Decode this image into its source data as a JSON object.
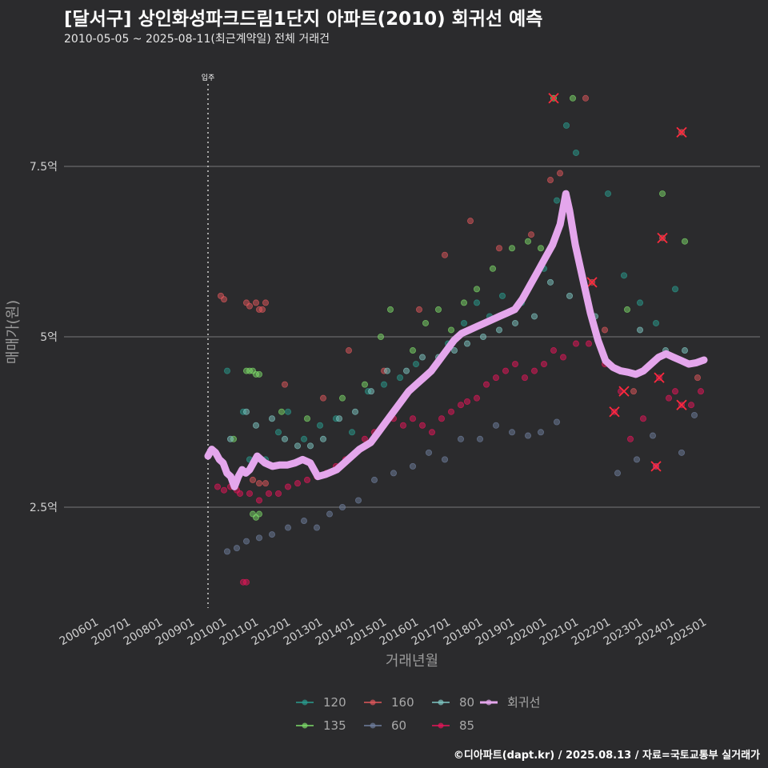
{
  "header": {
    "title": "[달서구] 상인화성파크드림1단지 아파트(2010) 회귀선 예측",
    "subtitle": "2010-05-05 ~ 2025-08-11(최근계약일) 전체 거래건"
  },
  "caption": "©디아파트(dapt.kr) / 2025.08.13 / 자료=국토교통부 실거래가",
  "colors": {
    "background": "#2b2b2d",
    "s120": "#2a9d8f",
    "s135": "#7ddc6a",
    "s160": "#e0575b",
    "s60": "#6f7f9e",
    "s80": "#7fc7c3",
    "s85": "#e8165a",
    "regression": "#e4a6ec"
  },
  "chart_data": {
    "type": "scatter",
    "title": "[달서구] 상인화성파크드림1단지 아파트(2010) 회귀선 예측",
    "subtitle": "2010-05-05 ~ 2025-08-11(최근계약일) 전체 거래건",
    "xlabel": "거래년월",
    "ylabel": "매매가(원)",
    "x_ticks": [
      "200601",
      "200701",
      "200801",
      "200901",
      "201001",
      "201101",
      "201201",
      "201301",
      "201401",
      "201501",
      "201601",
      "201701",
      "201801",
      "201901",
      "202001",
      "202101",
      "202201",
      "202301",
      "202401",
      "202501"
    ],
    "y_ticks": [
      2.5,
      5,
      7.5
    ],
    "y_tick_labels": [
      "2.5억",
      "5억",
      "7.5억"
    ],
    "ylim": [
      1.0,
      9.0
    ],
    "xlim": [
      2006.0,
      2025.75
    ],
    "grid": "horizontal major",
    "legend_position": "bottom",
    "vline": {
      "x": 2010.0,
      "label": "입주"
    },
    "legend": [
      "120",
      "135",
      "160",
      "60",
      "80",
      "85",
      "회귀선"
    ],
    "series": [
      {
        "name": "120",
        "color": "#2a9d8f",
        "points": [
          [
            2010.6,
            4.5
          ],
          [
            2011.1,
            3.9
          ],
          [
            2011.3,
            3.2
          ],
          [
            2011.8,
            3.2
          ],
          [
            2012.2,
            3.6
          ],
          [
            2012.5,
            3.9
          ],
          [
            2013.0,
            3.5
          ],
          [
            2013.5,
            3.7
          ],
          [
            2014.0,
            3.8
          ],
          [
            2014.5,
            3.6
          ],
          [
            2015.0,
            4.2
          ],
          [
            2015.5,
            4.3
          ],
          [
            2016.0,
            4.4
          ],
          [
            2016.5,
            4.6
          ],
          [
            2017.0,
            4.5
          ],
          [
            2017.5,
            4.9
          ],
          [
            2018.0,
            5.2
          ],
          [
            2018.4,
            5.5
          ],
          [
            2018.8,
            5.3
          ],
          [
            2019.2,
            5.6
          ],
          [
            2019.8,
            5.5
          ],
          [
            2020.5,
            6.0
          ],
          [
            2020.9,
            7.0
          ],
          [
            2021.2,
            8.1
          ],
          [
            2021.5,
            7.7
          ],
          [
            2022.5,
            7.1
          ],
          [
            2023.0,
            5.9
          ],
          [
            2023.5,
            5.5
          ],
          [
            2024.0,
            5.2
          ],
          [
            2024.6,
            5.7
          ]
        ]
      },
      {
        "name": "135",
        "color": "#7ddc6a",
        "points": [
          [
            2011.2,
            4.5
          ],
          [
            2011.3,
            4.5
          ],
          [
            2011.4,
            4.5
          ],
          [
            2011.5,
            4.45
          ],
          [
            2011.6,
            4.45
          ],
          [
            2011.4,
            2.4
          ],
          [
            2011.5,
            2.35
          ],
          [
            2011.6,
            2.4
          ],
          [
            2010.8,
            3.5
          ],
          [
            2012.3,
            3.9
          ],
          [
            2013.1,
            3.8
          ],
          [
            2014.2,
            4.1
          ],
          [
            2014.9,
            4.3
          ],
          [
            2015.4,
            5.0
          ],
          [
            2015.7,
            5.4
          ],
          [
            2016.4,
            4.8
          ],
          [
            2016.8,
            5.2
          ],
          [
            2017.2,
            5.4
          ],
          [
            2017.6,
            5.1
          ],
          [
            2018.0,
            5.5
          ],
          [
            2018.4,
            5.7
          ],
          [
            2018.9,
            6.0
          ],
          [
            2019.5,
            6.3
          ],
          [
            2020.0,
            6.4
          ],
          [
            2020.4,
            6.3
          ],
          [
            2020.8,
            8.5
          ],
          [
            2021.4,
            8.5
          ],
          [
            2023.1,
            5.4
          ],
          [
            2024.2,
            7.1
          ],
          [
            2024.9,
            6.4
          ]
        ]
      },
      {
        "name": "160",
        "color": "#e0575b",
        "points": [
          [
            2010.4,
            5.6
          ],
          [
            2010.5,
            5.55
          ],
          [
            2011.2,
            5.5
          ],
          [
            2011.3,
            5.45
          ],
          [
            2011.5,
            5.5
          ],
          [
            2011.6,
            5.4
          ],
          [
            2011.7,
            5.4
          ],
          [
            2011.8,
            5.5
          ],
          [
            2011.4,
            2.9
          ],
          [
            2011.6,
            2.85
          ],
          [
            2011.8,
            2.85
          ],
          [
            2012.4,
            4.3
          ],
          [
            2013.6,
            4.1
          ],
          [
            2014.4,
            4.8
          ],
          [
            2015.5,
            4.5
          ],
          [
            2016.6,
            5.4
          ],
          [
            2017.4,
            6.2
          ],
          [
            2018.2,
            6.7
          ],
          [
            2019.1,
            6.3
          ],
          [
            2020.1,
            6.5
          ],
          [
            2020.7,
            7.3
          ],
          [
            2021.0,
            7.4
          ],
          [
            2021.8,
            8.5
          ],
          [
            2022.0,
            5.8
          ],
          [
            2022.4,
            5.1
          ],
          [
            2023.3,
            4.2
          ],
          [
            2024.2,
            6.45
          ],
          [
            2024.8,
            8.0
          ],
          [
            2025.3,
            4.4
          ]
        ]
      },
      {
        "name": "60",
        "color": "#6f7f9e",
        "points": [
          [
            2010.6,
            1.85
          ],
          [
            2010.9,
            1.9
          ],
          [
            2011.2,
            2.0
          ],
          [
            2011.6,
            2.05
          ],
          [
            2012.0,
            2.1
          ],
          [
            2012.5,
            2.2
          ],
          [
            2013.0,
            2.3
          ],
          [
            2013.4,
            2.2
          ],
          [
            2013.8,
            2.4
          ],
          [
            2014.2,
            2.5
          ],
          [
            2014.7,
            2.6
          ],
          [
            2015.2,
            2.9
          ],
          [
            2015.8,
            3.0
          ],
          [
            2016.4,
            3.1
          ],
          [
            2016.9,
            3.3
          ],
          [
            2017.4,
            3.2
          ],
          [
            2017.9,
            3.5
          ],
          [
            2018.5,
            3.5
          ],
          [
            2019.0,
            3.7
          ],
          [
            2019.5,
            3.6
          ],
          [
            2020.0,
            3.55
          ],
          [
            2020.4,
            3.6
          ],
          [
            2020.9,
            3.75
          ],
          [
            2022.8,
            3.0
          ],
          [
            2023.4,
            3.2
          ],
          [
            2023.9,
            3.55
          ],
          [
            2024.0,
            3.1
          ],
          [
            2024.8,
            3.3
          ],
          [
            2025.2,
            3.85
          ]
        ]
      },
      {
        "name": "80",
        "color": "#7fc7c3",
        "points": [
          [
            2010.7,
            3.5
          ],
          [
            2011.2,
            3.9
          ],
          [
            2011.5,
            3.7
          ],
          [
            2012.0,
            3.8
          ],
          [
            2012.4,
            3.5
          ],
          [
            2012.8,
            3.4
          ],
          [
            2013.2,
            3.4
          ],
          [
            2013.6,
            3.5
          ],
          [
            2014.1,
            3.8
          ],
          [
            2014.6,
            3.9
          ],
          [
            2015.1,
            4.2
          ],
          [
            2015.6,
            4.5
          ],
          [
            2016.2,
            4.5
          ],
          [
            2016.7,
            4.7
          ],
          [
            2017.2,
            4.7
          ],
          [
            2017.7,
            4.8
          ],
          [
            2018.1,
            4.9
          ],
          [
            2018.6,
            5.0
          ],
          [
            2019.1,
            5.1
          ],
          [
            2019.6,
            5.2
          ],
          [
            2020.2,
            5.3
          ],
          [
            2020.7,
            5.8
          ],
          [
            2021.3,
            5.6
          ],
          [
            2022.1,
            5.3
          ],
          [
            2023.5,
            5.1
          ],
          [
            2024.3,
            4.8
          ],
          [
            2024.9,
            4.8
          ]
        ]
      },
      {
        "name": "85",
        "color": "#e8165a",
        "points": [
          [
            2010.3,
            2.8
          ],
          [
            2010.5,
            2.75
          ],
          [
            2010.7,
            2.8
          ],
          [
            2010.9,
            2.75
          ],
          [
            2011.0,
            2.7
          ],
          [
            2011.1,
            1.4
          ],
          [
            2011.2,
            1.4
          ],
          [
            2011.3,
            2.7
          ],
          [
            2011.6,
            2.6
          ],
          [
            2011.9,
            2.7
          ],
          [
            2012.2,
            2.7
          ],
          [
            2012.5,
            2.8
          ],
          [
            2012.8,
            2.85
          ],
          [
            2013.1,
            2.9
          ],
          [
            2013.4,
            2.95
          ],
          [
            2013.7,
            3.0
          ],
          [
            2014.0,
            3.1
          ],
          [
            2014.3,
            3.2
          ],
          [
            2014.6,
            3.3
          ],
          [
            2014.9,
            3.5
          ],
          [
            2015.2,
            3.6
          ],
          [
            2015.5,
            3.7
          ],
          [
            2015.8,
            3.8
          ],
          [
            2016.1,
            3.7
          ],
          [
            2016.4,
            3.8
          ],
          [
            2016.7,
            3.7
          ],
          [
            2017.0,
            3.6
          ],
          [
            2017.3,
            3.8
          ],
          [
            2017.6,
            3.9
          ],
          [
            2017.9,
            4.0
          ],
          [
            2018.1,
            4.05
          ],
          [
            2018.4,
            4.1
          ],
          [
            2018.7,
            4.3
          ],
          [
            2019.0,
            4.4
          ],
          [
            2019.3,
            4.5
          ],
          [
            2019.6,
            4.6
          ],
          [
            2019.9,
            4.4
          ],
          [
            2020.2,
            4.5
          ],
          [
            2020.5,
            4.6
          ],
          [
            2020.8,
            4.8
          ],
          [
            2021.1,
            4.7
          ],
          [
            2021.5,
            4.9
          ],
          [
            2021.9,
            4.9
          ],
          [
            2022.4,
            4.6
          ],
          [
            2022.7,
            3.9
          ],
          [
            2022.9,
            4.2
          ],
          [
            2023.2,
            3.5
          ],
          [
            2023.6,
            3.8
          ],
          [
            2024.0,
            3.1
          ],
          [
            2024.1,
            4.4
          ],
          [
            2024.4,
            4.1
          ],
          [
            2024.6,
            4.2
          ],
          [
            2024.8,
            4.0
          ],
          [
            2025.1,
            4.0
          ],
          [
            2025.4,
            4.2
          ]
        ]
      }
    ],
    "cancelled_points": [
      [
        2020.8,
        8.5
      ],
      [
        2024.8,
        8.0
      ],
      [
        2024.2,
        6.45
      ],
      [
        2022.0,
        5.8
      ],
      [
        2023.0,
        4.2
      ],
      [
        2022.7,
        3.9
      ],
      [
        2024.1,
        4.4
      ],
      [
        2024.8,
        4.0
      ],
      [
        2024.0,
        3.1
      ]
    ],
    "regression": {
      "name": "회귀선",
      "points": [
        [
          2009.6,
          3.25
        ],
        [
          2009.7,
          3.35
        ],
        [
          2009.8,
          3.3
        ],
        [
          2009.9,
          3.2
        ],
        [
          2010.0,
          3.15
        ],
        [
          2010.1,
          3.0
        ],
        [
          2010.2,
          2.95
        ],
        [
          2010.3,
          2.8
        ],
        [
          2010.4,
          2.95
        ],
        [
          2010.5,
          3.05
        ],
        [
          2010.6,
          3.0
        ],
        [
          2010.7,
          3.05
        ],
        [
          2010.8,
          3.15
        ],
        [
          2010.9,
          3.25
        ],
        [
          2011.1,
          3.15
        ],
        [
          2011.3,
          3.1
        ],
        [
          2011.5,
          3.12
        ],
        [
          2011.7,
          3.12
        ],
        [
          2011.9,
          3.15
        ],
        [
          2012.1,
          3.2
        ],
        [
          2012.3,
          3.15
        ],
        [
          2012.5,
          2.95
        ],
        [
          2012.7,
          2.98
        ],
        [
          2013.0,
          3.05
        ],
        [
          2013.3,
          3.2
        ],
        [
          2013.6,
          3.35
        ],
        [
          2013.9,
          3.45
        ],
        [
          2014.1,
          3.6
        ],
        [
          2014.3,
          3.75
        ],
        [
          2014.5,
          3.9
        ],
        [
          2014.7,
          4.05
        ],
        [
          2014.9,
          4.2
        ],
        [
          2015.1,
          4.3
        ],
        [
          2015.3,
          4.4
        ],
        [
          2015.5,
          4.5
        ],
        [
          2015.7,
          4.65
        ],
        [
          2015.9,
          4.8
        ],
        [
          2016.1,
          4.95
        ],
        [
          2016.3,
          5.05
        ],
        [
          2016.5,
          5.1
        ],
        [
          2016.7,
          5.15
        ],
        [
          2016.9,
          5.2
        ],
        [
          2017.1,
          5.25
        ],
        [
          2017.3,
          5.3
        ],
        [
          2017.5,
          5.35
        ],
        [
          2017.7,
          5.4
        ],
        [
          2017.9,
          5.55
        ],
        [
          2018.1,
          5.75
        ],
        [
          2018.3,
          5.95
        ],
        [
          2018.5,
          6.15
        ],
        [
          2018.7,
          6.35
        ],
        [
          2018.9,
          6.65
        ],
        [
          2019.0,
          6.95
        ],
        [
          2019.05,
          7.1
        ],
        [
          2019.15,
          6.85
        ],
        [
          2019.3,
          6.35
        ],
        [
          2019.5,
          5.85
        ],
        [
          2019.7,
          5.35
        ],
        [
          2019.9,
          4.95
        ],
        [
          2020.1,
          4.65
        ],
        [
          2020.3,
          4.55
        ],
        [
          2020.5,
          4.5
        ],
        [
          2020.7,
          4.48
        ],
        [
          2020.9,
          4.45
        ],
        [
          2021.1,
          4.5
        ],
        [
          2021.3,
          4.6
        ],
        [
          2021.5,
          4.7
        ],
        [
          2021.7,
          4.75
        ],
        [
          2021.9,
          4.7
        ],
        [
          2022.1,
          4.65
        ],
        [
          2022.3,
          4.6
        ],
        [
          2022.5,
          4.62
        ],
        [
          2022.7,
          4.66
        ]
      ]
    }
  },
  "axis": {
    "xlabel": "거래년월",
    "ylabel": "매매가(원)",
    "x_ticks": [
      "200601",
      "200701",
      "200801",
      "200901",
      "201001",
      "201101",
      "201201",
      "201301",
      "201401",
      "201501",
      "201601",
      "201701",
      "201801",
      "201901",
      "202001",
      "202101",
      "202201",
      "202301",
      "202401",
      "202501"
    ],
    "y_ticks": [
      "2.5억",
      "5억",
      "7.5억"
    ],
    "vline_label": "입주"
  },
  "legend": {
    "items": [
      {
        "label": "120",
        "key": "s120"
      },
      {
        "label": "135",
        "key": "s135"
      },
      {
        "label": "160",
        "key": "s160"
      },
      {
        "label": "60",
        "key": "s60"
      },
      {
        "label": "80",
        "key": "s80"
      },
      {
        "label": "85",
        "key": "s85"
      },
      {
        "label": "회귀선",
        "key": "regression"
      }
    ]
  }
}
